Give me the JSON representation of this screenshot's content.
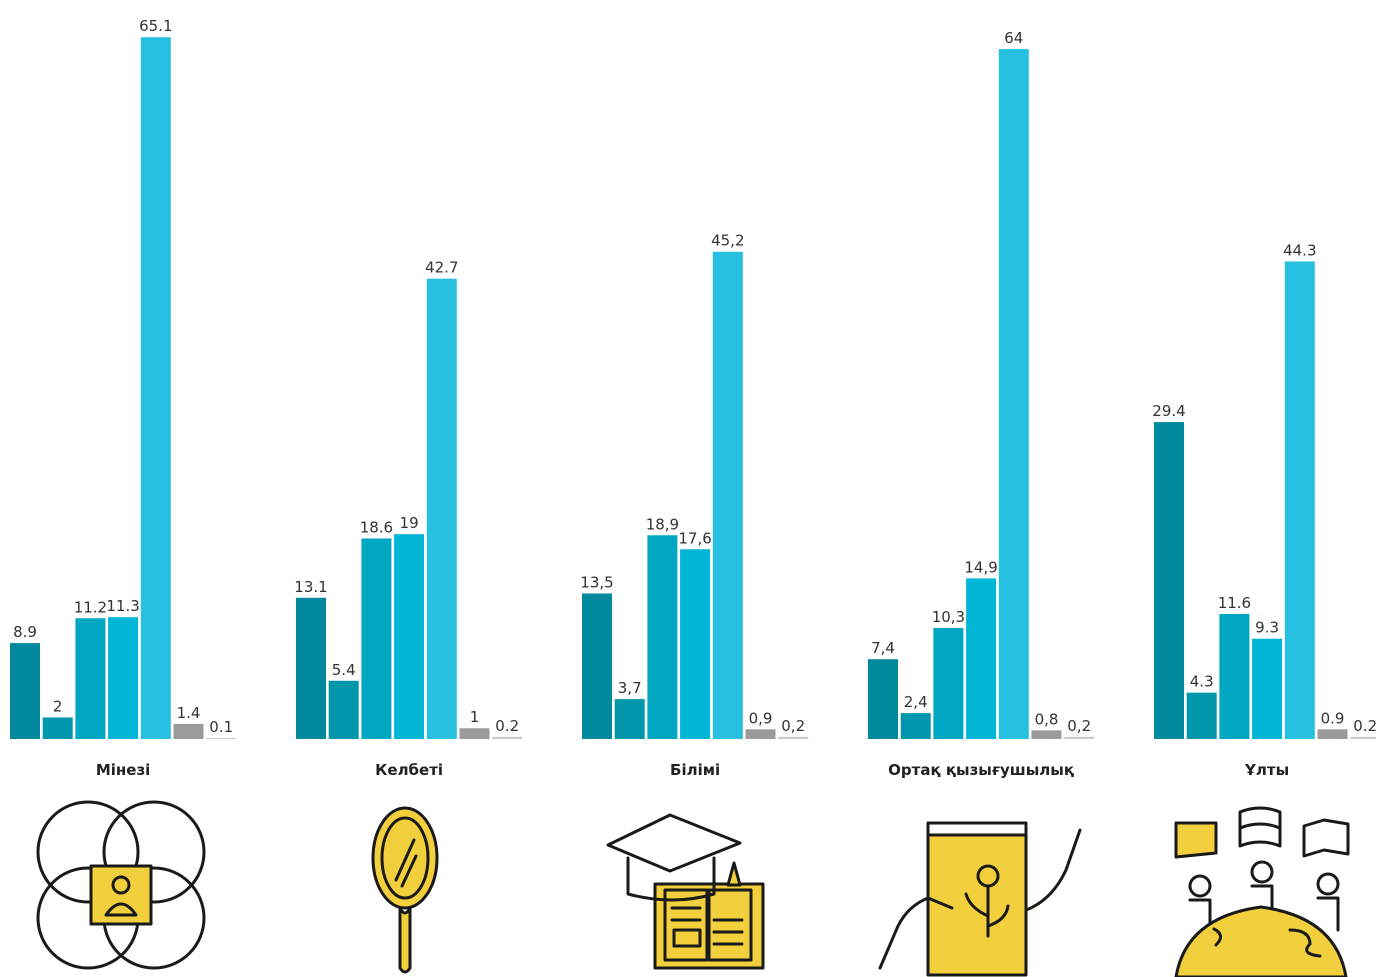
{
  "chart_data": {
    "type": "bar",
    "categories": [
      "Мінезі",
      "Келбеті",
      "Білімі",
      "Ортақ қызығушылық",
      "Ұлты"
    ],
    "series": [
      {
        "color": "#00889c",
        "values": [
          8.9,
          13.1,
          13.5,
          7.4,
          29.4
        ],
        "value_labels": [
          "8.9",
          "13.1",
          "13,5",
          "7,4",
          "29.4"
        ]
      },
      {
        "color": "#0097ac",
        "values": [
          2,
          5.4,
          3.7,
          2.4,
          4.3
        ],
        "value_labels": [
          "2",
          "5.4",
          "3,7",
          "2,4",
          "4.3"
        ]
      },
      {
        "color": "#00a7c2",
        "values": [
          11.2,
          18.6,
          18.9,
          10.3,
          11.6
        ],
        "value_labels": [
          "11.2",
          "18.6",
          "18,9",
          "10,3",
          "11.6"
        ]
      },
      {
        "color": "#00b5d6",
        "values": [
          11.3,
          19,
          17.6,
          14.9,
          9.3
        ],
        "value_labels": [
          "11.3",
          "19",
          "17,6",
          "14,9",
          "9.3"
        ]
      },
      {
        "color": "#28c0e0",
        "values": [
          65.1,
          42.7,
          45.2,
          64,
          44.3
        ],
        "value_labels": [
          "65.1",
          "42.7",
          "45,2",
          "64",
          "44.3"
        ]
      },
      {
        "color": "#9b9b9b",
        "values": [
          1.4,
          1,
          0.9,
          0.8,
          0.9
        ],
        "value_labels": [
          "1.4",
          "1",
          "0,9",
          "0,8",
          "0.9"
        ]
      },
      {
        "color": "#c9c9c9",
        "values": [
          0.1,
          0.2,
          0.2,
          0.2,
          0.2
        ],
        "value_labels": [
          "0.1",
          "0.2",
          "0,2",
          "0,2",
          "0.2"
        ]
      }
    ]
  }
}
